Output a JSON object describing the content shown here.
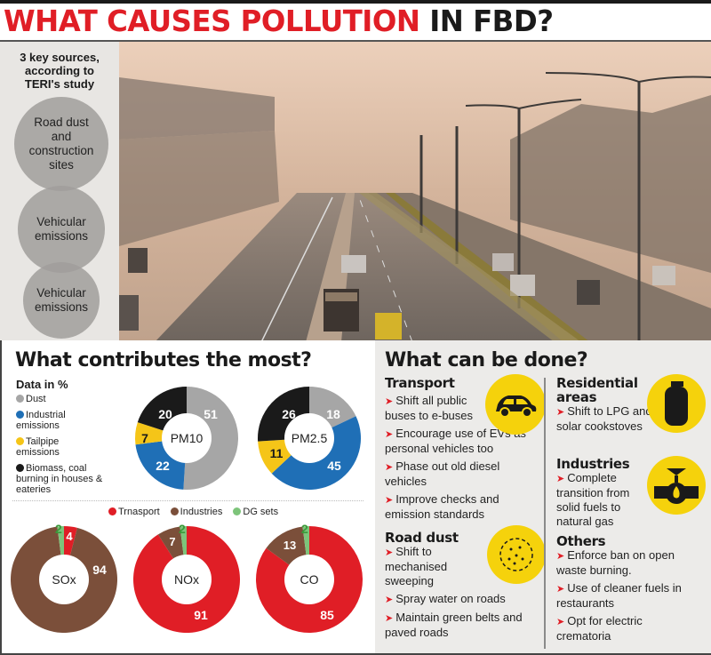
{
  "title": {
    "part_red": "WHAT CAUSES POLLUTION",
    "part_black": " IN FBD?"
  },
  "sidebar": {
    "heading": "3 key sources, according to TERI's study",
    "sources": [
      {
        "label": "Road dust and construction sites"
      },
      {
        "label": "Vehicular emissions"
      },
      {
        "label": "Vehicular emissions"
      }
    ]
  },
  "contributes": {
    "heading": "What contributes the most?",
    "legend_title": "Data in %",
    "legend": [
      {
        "label": "Dust",
        "color": "#a6a6a6"
      },
      {
        "label": "Industrial emissions",
        "color": "#1f6fb6"
      },
      {
        "label": "Tailpipe emissions",
        "color": "#f5c518"
      },
      {
        "label": "Biomass, coal burning in houses & eateries",
        "color": "#1a1a1a"
      }
    ],
    "legend2": [
      {
        "label": "Trnasport",
        "color": "#e01e26"
      },
      {
        "label": "Industries",
        "color": "#7b4f3a"
      },
      {
        "label": "DG sets",
        "color": "#7dc47a"
      }
    ]
  },
  "chart_data": [
    {
      "type": "pie",
      "title": "PM10",
      "categories": [
        "Dust",
        "Industrial emissions",
        "Tailpipe emissions",
        "Biomass, coal burning in houses & eateries"
      ],
      "values": [
        51,
        22,
        7,
        20
      ],
      "colors": [
        "#a6a6a6",
        "#1f6fb6",
        "#f5c518",
        "#1a1a1a"
      ],
      "unit": "%"
    },
    {
      "type": "pie",
      "title": "PM2.5",
      "categories": [
        "Dust",
        "Industrial emissions",
        "Tailpipe emissions",
        "Biomass, coal burning in houses & eateries"
      ],
      "values": [
        18,
        45,
        11,
        26
      ],
      "colors": [
        "#a6a6a6",
        "#1f6fb6",
        "#f5c518",
        "#1a1a1a"
      ],
      "unit": "%"
    },
    {
      "type": "pie",
      "title": "SOx",
      "categories": [
        "Trnasport",
        "Industries",
        "DG sets"
      ],
      "values": [
        4,
        94,
        2
      ],
      "colors": [
        "#e01e26",
        "#7b4f3a",
        "#7dc47a"
      ],
      "unit": "%"
    },
    {
      "type": "pie",
      "title": "NOx",
      "categories": [
        "Trnasport",
        "Industries",
        "DG sets"
      ],
      "values": [
        91,
        7,
        2
      ],
      "colors": [
        "#e01e26",
        "#7b4f3a",
        "#7dc47a"
      ],
      "unit": "%"
    },
    {
      "type": "pie",
      "title": "CO",
      "categories": [
        "Trnasport",
        "Industries",
        "DG sets"
      ],
      "values": [
        85,
        13,
        2
      ],
      "colors": [
        "#e01e26",
        "#7b4f3a",
        "#7dc47a"
      ],
      "unit": "%"
    }
  ],
  "done": {
    "heading": "What can be done?",
    "transport": {
      "title": "Transport",
      "items": [
        "Shift all public buses to e-buses",
        "Encourage use of EVs as personal vehicles too",
        "Phase out old diesel vehicles",
        "Improve checks and emission standards"
      ]
    },
    "road_dust": {
      "title": "Road dust",
      "items": [
        "Shift to mechanised sweeping",
        "Spray water on roads",
        "Maintain green belts and paved roads"
      ]
    },
    "residential": {
      "title": "Residential areas",
      "items": [
        "Shift to LPG and solar cookstoves"
      ]
    },
    "industries": {
      "title": "Industries",
      "items": [
        "Complete transition from solid fuels to natural gas"
      ]
    },
    "others": {
      "title": "Others",
      "items": [
        "Enforce ban on open waste burning.",
        "Use of cleaner fuels in restaurants",
        "Opt for electric crematoria"
      ]
    }
  }
}
